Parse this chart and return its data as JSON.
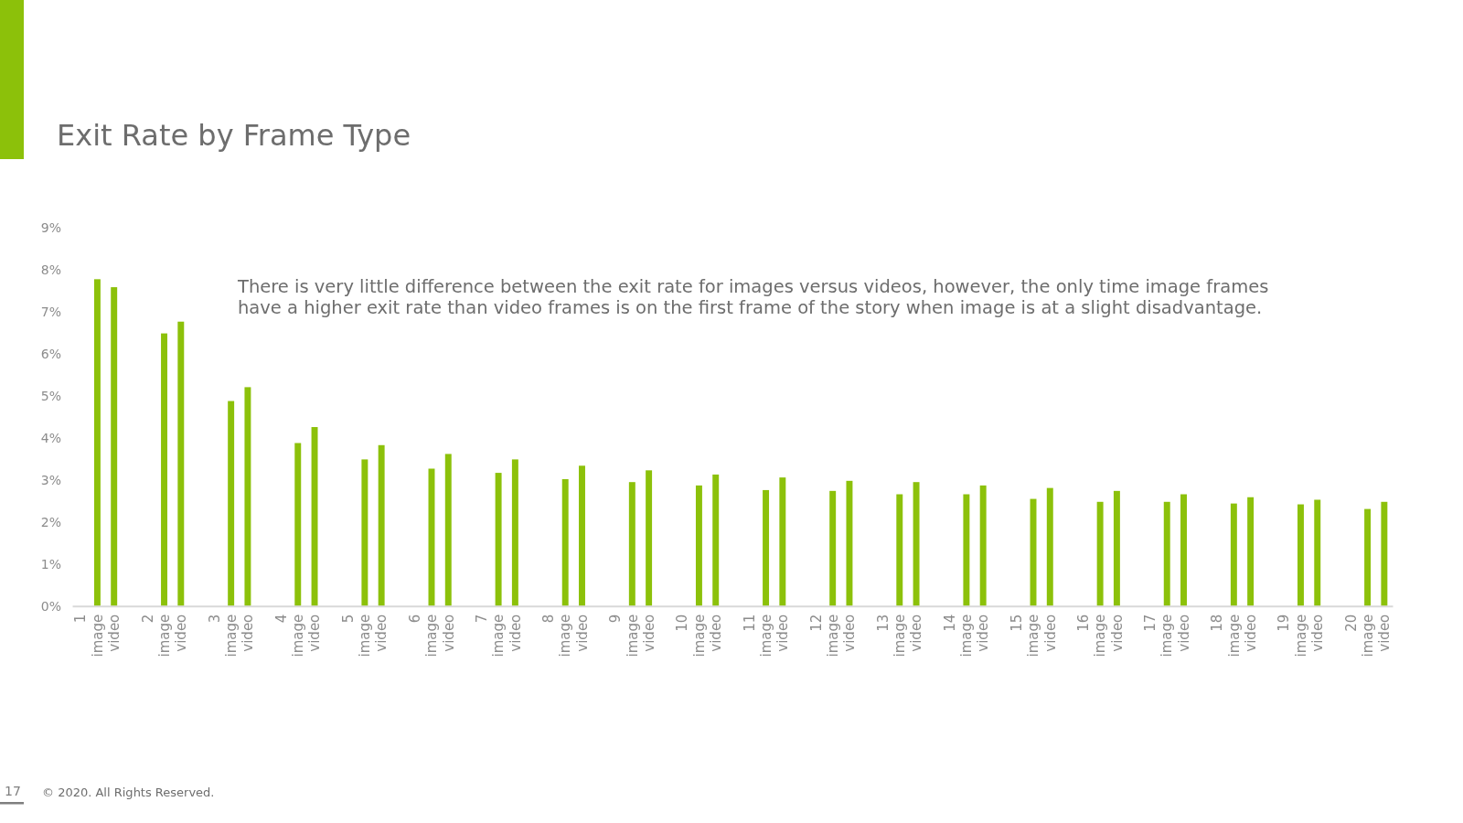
{
  "chart_data": {
    "type": "bar",
    "title": "Exit Rate by Frame Type",
    "annotations": [
      "There is very little difference between the exit rate for images versus videos, however, the only time image frames have a higher exit rate than video frames is on the first frame of the story when image is at a slight disadvantage.",
      "17",
      "© 2020. All Rights Reserved."
    ],
    "categories": [
      "1",
      "image",
      "video",
      null,
      "2",
      "image",
      "video",
      null,
      "3",
      "image",
      "video",
      null,
      "4",
      "image",
      "video",
      null,
      "5",
      "image",
      "video",
      null,
      "6",
      "image",
      "video",
      null,
      "7",
      "image",
      "video",
      null,
      "8",
      "image",
      "video",
      null,
      "9",
      "image",
      "video",
      null,
      "10",
      "image",
      "video",
      null,
      "11",
      "image",
      "video",
      null,
      "12",
      "image",
      "video",
      null,
      "13",
      "image",
      "video",
      null,
      "14",
      "image",
      "video",
      null,
      "15",
      "image",
      "video",
      null,
      "16",
      "image",
      "video",
      null,
      "17",
      "image",
      "video",
      null,
      "18",
      "image",
      "video",
      null,
      "19",
      "image",
      "video",
      null,
      "20",
      "image",
      "video"
    ],
    "values": [
      null,
      7.78,
      7.59,
      null,
      null,
      6.49,
      6.77,
      null,
      null,
      4.88,
      5.21,
      null,
      null,
      3.88,
      4.26,
      null,
      null,
      3.49,
      3.83,
      null,
      null,
      3.27,
      3.62,
      null,
      null,
      3.17,
      3.49,
      null,
      null,
      3.02,
      3.34,
      null,
      null,
      2.95,
      3.23,
      null,
      null,
      2.87,
      3.13,
      null,
      null,
      2.76,
      3.06,
      null,
      null,
      2.74,
      2.98,
      null,
      null,
      2.66,
      2.95,
      null,
      null,
      2.66,
      2.87,
      null,
      null,
      2.55,
      2.81,
      null,
      null,
      2.48,
      2.74,
      null,
      null,
      2.48,
      2.66,
      null,
      null,
      2.44,
      2.59,
      null,
      null,
      2.42,
      2.53,
      null,
      null,
      2.31,
      2.48
    ],
    "color": "#8cc10a",
    "ylim": [
      0,
      9
    ],
    "yticks": [
      {
        "value": 0,
        "label": "0%"
      },
      {
        "value": 1,
        "label": "1%"
      },
      {
        "value": 2,
        "label": "2%"
      },
      {
        "value": 3,
        "label": "3%"
      },
      {
        "value": 4,
        "label": "4%"
      },
      {
        "value": 5,
        "label": "5%"
      },
      {
        "value": 6,
        "label": "6%"
      },
      {
        "value": 7,
        "label": "7%"
      },
      {
        "value": 8,
        "label": "8%"
      },
      {
        "value": 9,
        "label": "9%"
      }
    ]
  }
}
